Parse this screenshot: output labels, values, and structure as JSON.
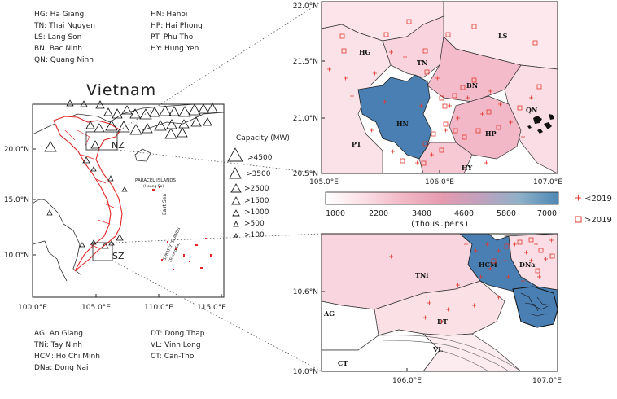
{
  "overview": {
    "title": "Vietnam",
    "x_ticks": [
      "100.0°E",
      "105.0°E",
      "110.0°E",
      "115.0°E"
    ],
    "y_ticks": [
      "20.0°N",
      "15.0°N",
      "10.0°N"
    ],
    "box_north": "NZ",
    "box_south": "SZ",
    "islands_paracel": "PARACEL ISLANDS",
    "islands_paracel_sub": "(Hoang Sa)",
    "islands_spratly": "SPRATLY ISLANDS",
    "islands_spratly_sub": "(Truong Sa)",
    "sea": "East Sea"
  },
  "legend_north": [
    {
      "code": "HG",
      "name": "Ha Giang"
    },
    {
      "code": "HN",
      "name": "Hanoi"
    },
    {
      "code": "TN",
      "name": "Thai Nguyen"
    },
    {
      "code": "HP",
      "name": "Hai Phong"
    },
    {
      "code": "LS",
      "name": "Lang Son"
    },
    {
      "code": "PT",
      "name": "Phu Tho"
    },
    {
      "code": "BN",
      "name": "Bac Ninh"
    },
    {
      "code": "HY",
      "name": "Hung Yen"
    },
    {
      "code": "QN",
      "name": "Quang Ninh"
    }
  ],
  "legend_south": [
    {
      "code": "AG",
      "name": "An Giang"
    },
    {
      "code": "DT",
      "name": "Dong Thap"
    },
    {
      "code": "TNi",
      "name": "Tay Ninh"
    },
    {
      "code": "VL",
      "name": "Vinh Long"
    },
    {
      "code": "HCM",
      "name": "Ho Chi Minh"
    },
    {
      "code": "CT",
      "name": "Can-Tho"
    },
    {
      "code": "DNa",
      "name": "Dong Nai"
    }
  ],
  "capacity": {
    "title": "Capacity (MW)",
    "classes": [
      ">4500",
      ">3500",
      ">2500",
      ">1500",
      ">1000",
      ">500",
      ">100"
    ]
  },
  "north_map": {
    "x_ticks": [
      "105.0°E",
      "106.0°E",
      "107.0°E"
    ],
    "y_ticks": [
      "22.0°N",
      "21.5°N",
      "21.0°N",
      "20.5°N"
    ],
    "labels": [
      "HG",
      "TN",
      "LS",
      "BN",
      "HN",
      "PT",
      "HP",
      "QN",
      "HY"
    ]
  },
  "south_map": {
    "x_ticks": [
      "106.0°E",
      "107.0°E"
    ],
    "y_ticks": [
      "10.6°N",
      "10.0°N"
    ],
    "labels": [
      "TNi",
      "HCM",
      "DNa",
      "DT",
      "AG",
      "CT",
      "VL"
    ]
  },
  "colorbar": {
    "ticks": [
      "1000",
      "2200",
      "3400",
      "4600",
      "5800",
      "7000"
    ],
    "unit": "(thous.pers)",
    "colors": [
      "#ffffff",
      "#fbe0e6",
      "#f2b9c6",
      "#e59bb0",
      "#c2a0bd",
      "#8fb1c8",
      "#4e88b5"
    ]
  },
  "marker_legend": [
    {
      "symbol": "+",
      "label": "<2019",
      "color": "#e0392f"
    },
    {
      "symbol": "□",
      "label": ">2019",
      "color": "#e0392f"
    }
  ]
}
